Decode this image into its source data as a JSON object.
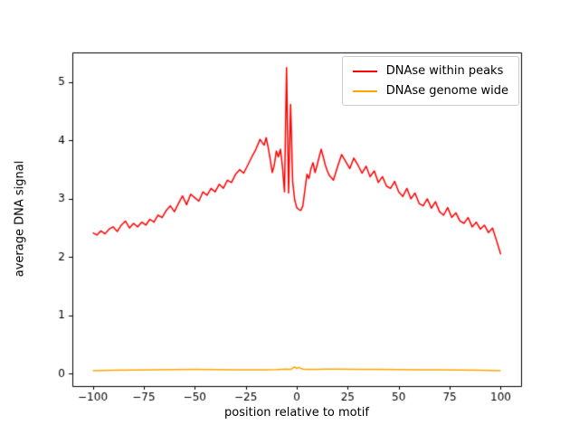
{
  "figure": {
    "background": "#ffffff"
  },
  "chart_data": {
    "type": "line",
    "title": "",
    "xlabel": "position relative to motif",
    "ylabel": "average DNA signal",
    "xlim": [
      -110,
      110
    ],
    "ylim": [
      -0.21,
      5.51
    ],
    "xticks": [
      -100,
      -75,
      -50,
      -25,
      0,
      25,
      50,
      75,
      100
    ],
    "yticks": [
      0,
      1,
      2,
      3,
      4,
      5
    ],
    "grid": false,
    "legend_position": "upper right",
    "series": [
      {
        "name": "DNAse within peaks",
        "color": "#ff0000",
        "x": [
          -100,
          -98,
          -96,
          -94,
          -92,
          -90,
          -88,
          -86,
          -84,
          -82,
          -80,
          -78,
          -76,
          -74,
          -72,
          -70,
          -68,
          -66,
          -64,
          -62,
          -60,
          -58,
          -56,
          -54,
          -52,
          -50,
          -48,
          -46,
          -44,
          -42,
          -40,
          -38,
          -36,
          -34,
          -32,
          -30,
          -28,
          -26,
          -24,
          -22,
          -20,
          -18,
          -16,
          -15,
          -14,
          -13,
          -12,
          -11,
          -10,
          -9,
          -8,
          -7,
          -6,
          -5,
          -4,
          -3,
          -2,
          -1,
          0,
          1,
          2,
          3,
          4,
          5,
          6,
          7,
          8,
          9,
          10,
          11,
          12,
          13,
          14,
          15,
          16,
          18,
          20,
          22,
          24,
          26,
          28,
          30,
          32,
          34,
          36,
          38,
          40,
          42,
          44,
          46,
          48,
          50,
          52,
          54,
          56,
          58,
          60,
          62,
          64,
          66,
          68,
          70,
          72,
          74,
          76,
          78,
          80,
          82,
          84,
          86,
          88,
          90,
          92,
          94,
          96,
          98,
          100
        ],
        "y": [
          2.42,
          2.38,
          2.45,
          2.4,
          2.48,
          2.52,
          2.44,
          2.55,
          2.62,
          2.5,
          2.58,
          2.52,
          2.6,
          2.55,
          2.65,
          2.6,
          2.72,
          2.68,
          2.8,
          2.88,
          2.78,
          2.92,
          3.05,
          2.9,
          3.08,
          3.02,
          2.96,
          3.12,
          3.06,
          3.18,
          3.12,
          3.25,
          3.18,
          3.32,
          3.28,
          3.42,
          3.5,
          3.44,
          3.58,
          3.72,
          3.85,
          4.02,
          3.92,
          4.05,
          3.88,
          3.68,
          3.45,
          3.58,
          3.82,
          3.72,
          3.85,
          3.55,
          3.12,
          5.25,
          3.1,
          4.62,
          3.3,
          2.98,
          2.85,
          2.82,
          2.8,
          2.88,
          3.15,
          3.42,
          3.35,
          3.52,
          3.62,
          3.45,
          3.58,
          3.72,
          3.85,
          3.72,
          3.58,
          3.48,
          3.4,
          3.32,
          3.55,
          3.76,
          3.64,
          3.52,
          3.7,
          3.58,
          3.44,
          3.56,
          3.38,
          3.48,
          3.28,
          3.38,
          3.22,
          3.18,
          3.3,
          3.12,
          3.04,
          3.18,
          3.0,
          3.1,
          2.92,
          2.88,
          3.0,
          2.84,
          2.95,
          2.78,
          2.72,
          2.85,
          2.68,
          2.76,
          2.62,
          2.58,
          2.68,
          2.52,
          2.6,
          2.48,
          2.55,
          2.42,
          2.5,
          2.28,
          2.05
        ]
      },
      {
        "name": "DNAse genome wide",
        "color": "#ffa500",
        "x": [
          -100,
          -90,
          -80,
          -70,
          -60,
          -50,
          -40,
          -30,
          -20,
          -15,
          -10,
          -5,
          -3,
          -1,
          0,
          1,
          3,
          5,
          10,
          15,
          20,
          30,
          40,
          50,
          60,
          70,
          80,
          90,
          100
        ],
        "y": [
          0.055,
          0.06,
          0.065,
          0.07,
          0.072,
          0.075,
          0.072,
          0.07,
          0.068,
          0.07,
          0.072,
          0.08,
          0.075,
          0.12,
          0.09,
          0.11,
          0.08,
          0.078,
          0.075,
          0.08,
          0.082,
          0.078,
          0.075,
          0.072,
          0.07,
          0.068,
          0.065,
          0.06,
          0.055
        ]
      }
    ]
  }
}
